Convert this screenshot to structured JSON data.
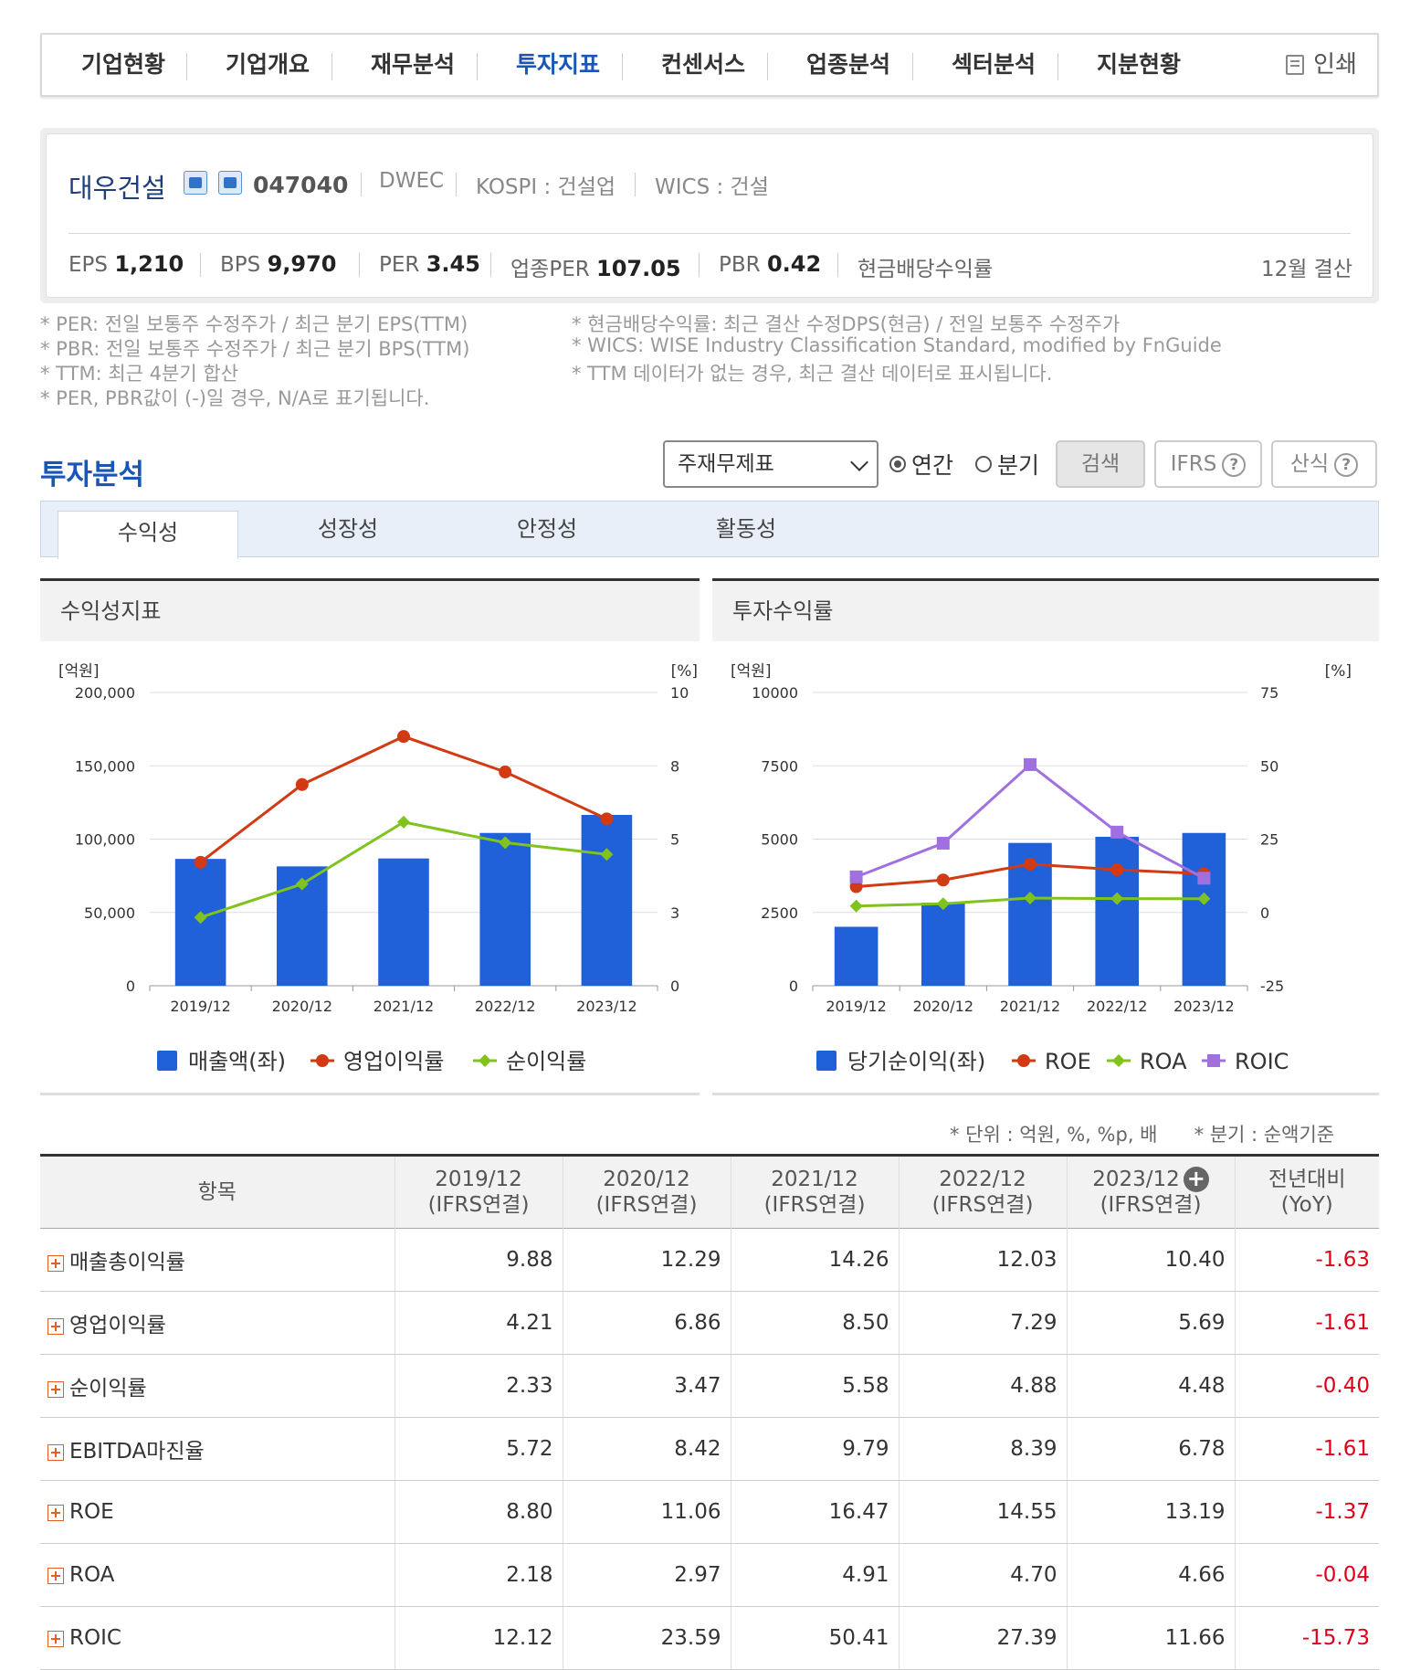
{
  "nav": {
    "tabs": [
      "기업현황",
      "기업개요",
      "재무분석",
      "투자지표",
      "컨센서스",
      "업종분석",
      "섹터분석",
      "지분현황"
    ],
    "active": 3,
    "print_label": "인쇄"
  },
  "company": {
    "name": "대우건설",
    "code": "047040",
    "ticker": "DWEC",
    "market": "KOSPI : 건설업",
    "wics": "WICS : 건설",
    "metrics": [
      {
        "label": "EPS",
        "value": "1,210"
      },
      {
        "label": "BPS",
        "value": "9,970"
      },
      {
        "label": "PER",
        "value": "3.45"
      },
      {
        "label": "업종PER",
        "value": "107.05"
      },
      {
        "label": "PBR",
        "value": "0.42"
      },
      {
        "label": "현금배당수익률",
        "value": ""
      }
    ],
    "fiscal": "12월 결산"
  },
  "notes": {
    "left": [
      "* PER: 전일 보통주 수정주가 / 최근 분기 EPS(TTM)",
      "* PBR: 전일 보통주 수정주가 / 최근 분기 BPS(TTM)",
      "* TTM: 최근 4분기 합산",
      "* PER, PBR값이 (-)일 경우, N/A로 표기됩니다."
    ],
    "right": [
      "* 현금배당수익률: 최근 결산 수정DPS(현금) / 전일 보통주 수정주가",
      "* WICS: WISE Industry Classification Standard, modified by FnGuide",
      "* TTM 데이터가 없는 경우, 최근 결산 데이터로 표시됩니다."
    ]
  },
  "analysis": {
    "title": "투자분석",
    "select_value": "주재무제표",
    "radio_annual": "연간",
    "radio_quarter": "분기",
    "search_label": "검색",
    "ifrs_label": "IFRS",
    "formula_label": "산식",
    "help_glyph": "?",
    "subtabs": [
      "수익성",
      "성장성",
      "안정성",
      "활동성"
    ]
  },
  "chart_data": [
    {
      "type": "bar",
      "title": "수익성지표",
      "categories": [
        "2019/12",
        "2020/12",
        "2021/12",
        "2022/12",
        "2023/12"
      ],
      "y_left_unit": "[억원]",
      "y_right_unit": "[%]",
      "y_left_ticks": [
        "0",
        "50,000",
        "100,000",
        "150,000",
        "200,000"
      ],
      "y_right_ticks": [
        "0",
        "3",
        "5",
        "8",
        "10"
      ],
      "y_left_range": [
        0,
        200000
      ],
      "y_right_range": [
        0,
        10
      ],
      "series": [
        {
          "name": "매출액(좌)",
          "kind": "bar",
          "axis": "left",
          "color": "#2060d8",
          "values": [
            86500,
            81400,
            86800,
            104200,
            116500
          ]
        },
        {
          "name": "영업이익률",
          "kind": "line",
          "axis": "right",
          "color": "#d13a12",
          "values": [
            4.21,
            6.86,
            8.5,
            7.29,
            5.69
          ]
        },
        {
          "name": "순이익률",
          "kind": "line",
          "axis": "right",
          "color": "#7fc31c",
          "values": [
            2.33,
            3.47,
            5.58,
            4.88,
            4.48
          ]
        }
      ]
    },
    {
      "type": "bar",
      "title": "투자수익률",
      "categories": [
        "2019/12",
        "2020/12",
        "2021/12",
        "2022/12",
        "2023/12"
      ],
      "y_left_unit": "[억원]",
      "y_right_unit": "[%]",
      "y_left_ticks": [
        "0",
        "2500",
        "5000",
        "7500",
        "10000"
      ],
      "y_right_ticks": [
        "-25",
        "0",
        "25",
        "50",
        "75"
      ],
      "y_left_range": [
        0,
        10000
      ],
      "y_right_range": [
        -25,
        75
      ],
      "series": [
        {
          "name": "당기순이익(좌)",
          "kind": "bar",
          "axis": "left",
          "color": "#2060d8",
          "values": [
            2010,
            2830,
            4870,
            5080,
            5210
          ]
        },
        {
          "name": "ROE",
          "kind": "line",
          "axis": "right",
          "color": "#d13a12",
          "values": [
            8.8,
            11.06,
            16.47,
            14.55,
            13.19
          ]
        },
        {
          "name": "ROA",
          "kind": "line",
          "axis": "right",
          "color": "#7fc31c",
          "values": [
            2.18,
            2.97,
            4.91,
            4.7,
            4.66
          ]
        },
        {
          "name": "ROIC",
          "kind": "line",
          "axis": "right",
          "color": "#a070e0",
          "values": [
            12.12,
            23.59,
            50.41,
            27.39,
            11.66
          ]
        }
      ]
    }
  ],
  "table": {
    "units_left": "* 단위 : 억원, %, %p, 배",
    "units_right": "* 분기 : 순액기준",
    "headers": [
      {
        "l1": "항목",
        "l2": ""
      },
      {
        "l1": "2019/12",
        "l2": "(IFRS연결)"
      },
      {
        "l1": "2020/12",
        "l2": "(IFRS연결)"
      },
      {
        "l1": "2021/12",
        "l2": "(IFRS연결)"
      },
      {
        "l1": "2022/12",
        "l2": "(IFRS연결)"
      },
      {
        "l1": "2023/12",
        "l2": "(IFRS연결)"
      },
      {
        "l1": "전년대비",
        "l2": "(YoY)"
      }
    ],
    "expand_glyph": "+",
    "rows": [
      {
        "label": "매출총이익률",
        "values": [
          "9.88",
          "12.29",
          "14.26",
          "12.03",
          "10.40"
        ],
        "yoy": "-1.63"
      },
      {
        "label": "영업이익률",
        "values": [
          "4.21",
          "6.86",
          "8.50",
          "7.29",
          "5.69"
        ],
        "yoy": "-1.61"
      },
      {
        "label": "순이익률",
        "values": [
          "2.33",
          "3.47",
          "5.58",
          "4.88",
          "4.48"
        ],
        "yoy": "-0.40"
      },
      {
        "label": "EBITDA마진율",
        "values": [
          "5.72",
          "8.42",
          "9.79",
          "8.39",
          "6.78"
        ],
        "yoy": "-1.61"
      },
      {
        "label": "ROE",
        "values": [
          "8.80",
          "11.06",
          "16.47",
          "14.55",
          "13.19"
        ],
        "yoy": "-1.37"
      },
      {
        "label": "ROA",
        "values": [
          "2.18",
          "2.97",
          "4.91",
          "4.70",
          "4.66"
        ],
        "yoy": "-0.04"
      },
      {
        "label": "ROIC",
        "values": [
          "12.12",
          "23.59",
          "50.41",
          "27.39",
          "11.66"
        ],
        "yoy": "-15.73"
      }
    ]
  }
}
